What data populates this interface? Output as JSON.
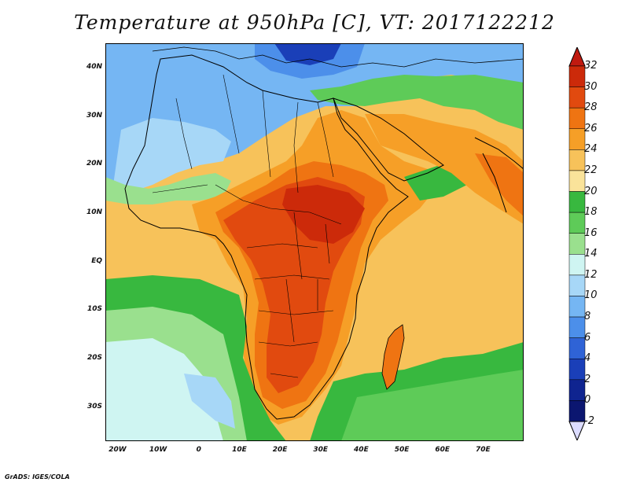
{
  "title": "Temperature at 950hPa [C], VT: 2017122212",
  "footer": "GrADS: IGES/COLA",
  "map": {
    "lon_range": [
      -23,
      80
    ],
    "lat_range": [
      -37,
      45
    ],
    "lat_ticks": [
      "40N",
      "30N",
      "20N",
      "10N",
      "EQ",
      "10S",
      "20S",
      "30S"
    ],
    "lat_values": [
      40,
      30,
      20,
      10,
      0,
      -10,
      -20,
      -30
    ],
    "lon_ticks": [
      "20W",
      "10W",
      "0",
      "10E",
      "20E",
      "30E",
      "40E",
      "50E",
      "60E",
      "70E"
    ],
    "lon_values": [
      -20,
      -10,
      0,
      10,
      20,
      30,
      40,
      50,
      60,
      70
    ]
  },
  "colorbar": {
    "labels": [
      "32",
      "30",
      "28",
      "26",
      "24",
      "22",
      "20",
      "18",
      "16",
      "14",
      "12",
      "10",
      "8",
      "6",
      "4",
      "2",
      "0",
      "-2"
    ],
    "colors": [
      "#cc2a0a",
      "#e14a0f",
      "#ef7412",
      "#f69f27",
      "#f7c25a",
      "#fae39a",
      "#38b83f",
      "#5ecb58",
      "#9ae08e",
      "#cff5f2",
      "#a7d7f7",
      "#75b6f3",
      "#4c8fea",
      "#2f63d6",
      "#1a3fb8",
      "#0f2490",
      "#0b1670"
    ],
    "top_arrow_color": "#c01a10",
    "bottom_arrow_color": "#dcdcff"
  }
}
